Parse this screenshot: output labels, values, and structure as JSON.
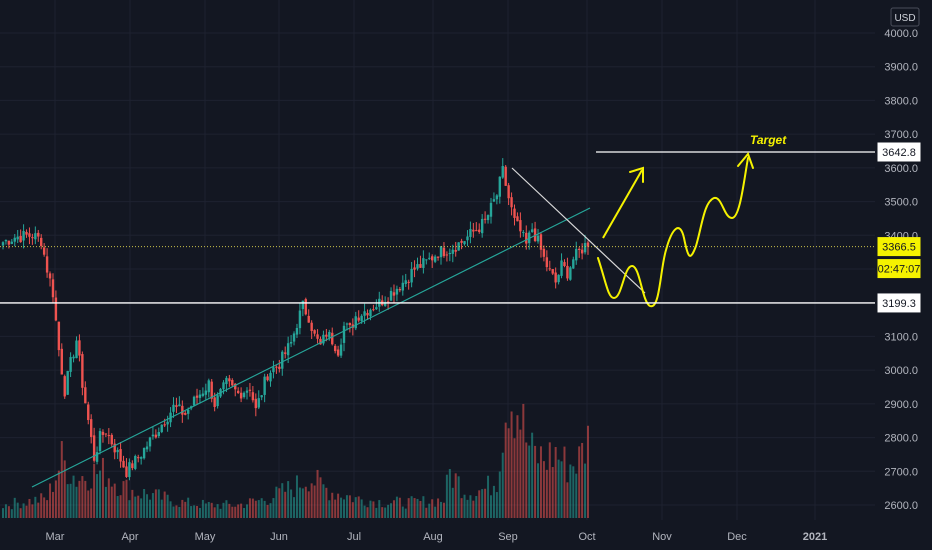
{
  "chart_data": {
    "type": "candlestick",
    "currency": "USD",
    "y_ticks": [
      "4000.0",
      "3900.0",
      "3800.0",
      "3700.0",
      "3600.0",
      "3500.0",
      "3400.0",
      "3300.0",
      "3200.0",
      "3100.0",
      "3000.0",
      "2900.0",
      "2800.0",
      "2700.0",
      "2600.0"
    ],
    "ylim": [
      2575,
      4030
    ],
    "x_ticks": [
      "Mar",
      "Apr",
      "May",
      "Jun",
      "Jul",
      "Aug",
      "Sep",
      "Oct",
      "Nov",
      "Dec",
      "2021"
    ],
    "price_tags": {
      "target": "3642.8",
      "current": "3366.5",
      "countdown": "02:47:07",
      "support": "3199.3"
    },
    "annotation": "Target",
    "horizontal_levels": [
      3642.8,
      3366.5,
      3199.3
    ],
    "anchor_closes": [
      [
        0,
        3380
      ],
      [
        4,
        3395
      ],
      [
        10,
        3400
      ],
      [
        13,
        3385
      ],
      [
        15,
        3300
      ],
      [
        17,
        3230
      ],
      [
        19,
        3060
      ],
      [
        21,
        2940
      ],
      [
        23,
        3020
      ],
      [
        25,
        3090
      ],
      [
        27,
        2960
      ],
      [
        29,
        2850
      ],
      [
        31,
        2740
      ],
      [
        33,
        2800
      ],
      [
        35,
        2820
      ],
      [
        38,
        2770
      ],
      [
        42,
        2700
      ],
      [
        46,
        2740
      ],
      [
        50,
        2790
      ],
      [
        54,
        2840
      ],
      [
        58,
        2890
      ],
      [
        62,
        2870
      ],
      [
        66,
        2920
      ],
      [
        70,
        2960
      ],
      [
        72,
        2900
      ],
      [
        76,
        2960
      ],
      [
        80,
        2930
      ],
      [
        84,
        2950
      ],
      [
        86,
        2880
      ],
      [
        90,
        2990
      ],
      [
        94,
        3020
      ],
      [
        98,
        3080
      ],
      [
        100,
        3140
      ],
      [
        102,
        3190
      ],
      [
        104,
        3160
      ],
      [
        106,
        3100
      ],
      [
        108,
        3070
      ],
      [
        110,
        3110
      ],
      [
        112,
        3090
      ],
      [
        114,
        3060
      ],
      [
        116,
        3130
      ],
      [
        118,
        3120
      ],
      [
        120,
        3160
      ],
      [
        124,
        3180
      ],
      [
        128,
        3200
      ],
      [
        132,
        3230
      ],
      [
        136,
        3260
      ],
      [
        140,
        3300
      ],
      [
        144,
        3320
      ],
      [
        148,
        3350
      ],
      [
        152,
        3360
      ],
      [
        156,
        3380
      ],
      [
        160,
        3410
      ],
      [
        164,
        3440
      ],
      [
        166,
        3480
      ],
      [
        168,
        3520
      ],
      [
        170,
        3590
      ],
      [
        172,
        3510
      ],
      [
        174,
        3440
      ],
      [
        176,
        3410
      ],
      [
        178,
        3370
      ],
      [
        180,
        3420
      ],
      [
        182,
        3380
      ],
      [
        184,
        3330
      ],
      [
        186,
        3290
      ],
      [
        188,
        3260
      ],
      [
        190,
        3310
      ],
      [
        192,
        3290
      ],
      [
        194,
        3330
      ],
      [
        196,
        3350
      ],
      [
        198,
        3370
      ],
      [
        199,
        3366.5
      ]
    ],
    "volume_anchors": [
      [
        0,
        0.1
      ],
      [
        15,
        0.15
      ],
      [
        20,
        0.45
      ],
      [
        25,
        0.3
      ],
      [
        30,
        0.35
      ],
      [
        35,
        0.35
      ],
      [
        40,
        0.25
      ],
      [
        45,
        0.2
      ],
      [
        50,
        0.18
      ],
      [
        60,
        0.12
      ],
      [
        70,
        0.1
      ],
      [
        80,
        0.1
      ],
      [
        90,
        0.15
      ],
      [
        95,
        0.2
      ],
      [
        100,
        0.25
      ],
      [
        104,
        0.32
      ],
      [
        108,
        0.25
      ],
      [
        112,
        0.2
      ],
      [
        116,
        0.18
      ],
      [
        120,
        0.15
      ],
      [
        130,
        0.12
      ],
      [
        140,
        0.12
      ],
      [
        150,
        0.14
      ],
      [
        152,
        0.35
      ],
      [
        154,
        0.3
      ],
      [
        158,
        0.2
      ],
      [
        164,
        0.22
      ],
      [
        168,
        0.3
      ],
      [
        170,
        0.7
      ],
      [
        172,
        1.0
      ],
      [
        174,
        0.9
      ],
      [
        176,
        0.8
      ],
      [
        178,
        0.6
      ],
      [
        180,
        0.5
      ],
      [
        184,
        0.45
      ],
      [
        188,
        0.5
      ],
      [
        192,
        0.4
      ],
      [
        196,
        0.45
      ],
      [
        199,
        0.6
      ]
    ]
  },
  "colors": {
    "background": "#131722",
    "up": "#26a69a",
    "down": "#ef5350",
    "trendline": "#26a69a",
    "drawing": "#f5f200",
    "level": "#ffffff",
    "grid": "#1e2230"
  }
}
